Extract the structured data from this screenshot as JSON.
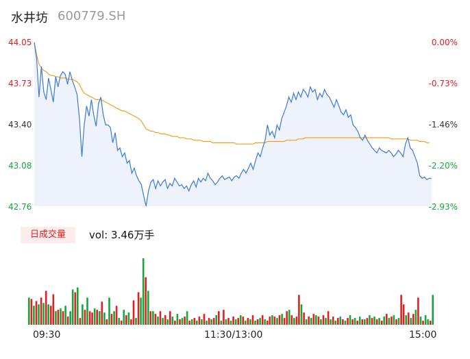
{
  "header": {
    "name": "水井坊",
    "code": "600779.SH"
  },
  "price_axis": [
    "44.05",
    "43.73",
    "43.40",
    "43.08",
    "42.76"
  ],
  "pct_axis": [
    "0.00%",
    "-0.73%",
    "-1.46%",
    "-2.20%",
    "-2.93%"
  ],
  "volume": {
    "badge": "日成交量",
    "label": "vol: 3.46万手"
  },
  "time_axis": [
    "09:30",
    "11:30/13:00",
    "15:00"
  ],
  "colors": {
    "price": "#3a78d8",
    "avg": "#f0a020",
    "up": "#e02020",
    "down": "#17a63a",
    "area": "#eef3fb"
  },
  "chart_data": {
    "type": "line",
    "ylim": [
      42.76,
      44.05
    ],
    "series": [
      {
        "values": [
          44.05,
          43.92,
          43.62,
          43.86,
          43.66,
          43.6,
          43.77,
          43.68,
          43.58,
          43.78,
          43.7,
          43.79,
          43.82,
          43.8,
          43.72,
          43.82,
          43.75,
          43.7,
          43.64,
          43.45,
          43.15,
          43.4,
          43.55,
          43.47,
          43.6,
          43.48,
          43.39,
          43.57,
          43.62,
          43.48,
          43.4,
          43.4,
          43.38,
          43.26,
          43.34,
          43.2,
          43.22,
          43.15,
          43.18,
          43.1,
          43.12,
          43.02,
          43.06,
          43.0,
          42.96,
          42.93,
          42.84,
          42.76,
          42.88,
          42.95,
          42.97,
          42.9,
          42.96,
          42.92,
          42.95,
          42.97,
          42.9,
          42.94,
          42.92,
          42.98,
          42.95,
          42.92,
          42.93,
          42.9,
          42.92,
          42.88,
          42.93,
          42.96,
          42.91,
          42.98,
          42.95,
          42.98,
          42.96,
          43.02,
          42.98,
          42.96,
          42.93,
          42.95,
          42.98,
          43.0,
          42.97,
          42.98,
          42.99,
          42.96,
          42.99,
          43.0,
          42.98,
          43.02,
          43.05,
          43.02,
          43.06,
          43.1,
          43.05,
          43.12,
          43.18,
          43.15,
          43.22,
          43.28,
          43.4,
          43.32,
          43.35,
          43.3,
          43.4,
          43.36,
          43.45,
          43.5,
          43.55,
          43.62,
          43.58,
          43.65,
          43.6,
          43.66,
          43.62,
          43.68,
          43.66,
          43.62,
          43.7,
          43.66,
          43.68,
          43.6,
          43.65,
          43.62,
          43.68,
          43.64,
          43.62,
          43.58,
          43.54,
          43.6,
          43.55,
          43.5,
          43.48,
          43.52,
          43.46,
          43.48,
          43.4,
          43.38,
          43.35,
          43.3,
          43.28,
          43.32,
          43.28,
          43.25,
          43.22,
          43.2,
          43.18,
          43.22,
          43.2,
          43.19,
          43.18,
          43.2,
          43.18,
          43.15,
          43.17,
          43.2,
          43.18,
          43.15,
          43.25,
          43.3,
          43.22,
          43.2,
          43.15,
          43.1,
          43.0,
          42.98,
          42.99,
          42.97,
          42.98,
          42.98
        ]
      },
      {
        "values": [
          44.05,
          43.95,
          43.88,
          43.85,
          43.83,
          43.82,
          43.8,
          43.79,
          43.79,
          43.78,
          43.78,
          43.77,
          43.77,
          43.77,
          43.76,
          43.76,
          43.76,
          43.75,
          43.74,
          43.72,
          43.68,
          43.65,
          43.64,
          43.63,
          43.62,
          43.61,
          43.6,
          43.6,
          43.6,
          43.59,
          43.58,
          43.57,
          43.56,
          43.55,
          43.54,
          43.53,
          43.52,
          43.51,
          43.51,
          43.5,
          43.49,
          43.48,
          43.47,
          43.46,
          43.45,
          43.43,
          43.4,
          43.37,
          43.36,
          43.35,
          43.35,
          43.34,
          43.34,
          43.33,
          43.33,
          43.33,
          43.32,
          43.32,
          43.31,
          43.31,
          43.31,
          43.3,
          43.3,
          43.3,
          43.29,
          43.29,
          43.29,
          43.28,
          43.28,
          43.28,
          43.28,
          43.27,
          43.27,
          43.27,
          43.27,
          43.26,
          43.26,
          43.26,
          43.26,
          43.26,
          43.26,
          43.26,
          43.26,
          43.26,
          43.26,
          43.25,
          43.25,
          43.25,
          43.25,
          43.25,
          43.25,
          43.25,
          43.25,
          43.26,
          43.26,
          43.26,
          43.26,
          43.26,
          43.27,
          43.27,
          43.27,
          43.27,
          43.27,
          43.27,
          43.27,
          43.27,
          43.28,
          43.28,
          43.28,
          43.28,
          43.28,
          43.29,
          43.29,
          43.29,
          43.3,
          43.3,
          43.3,
          43.3,
          43.3,
          43.3,
          43.3,
          43.3,
          43.3,
          43.3,
          43.3,
          43.3,
          43.3,
          43.3,
          43.3,
          43.3,
          43.3,
          43.3,
          43.3,
          43.3,
          43.3,
          43.3,
          43.3,
          43.3,
          43.3,
          43.3,
          43.3,
          43.3,
          43.3,
          43.3,
          43.3,
          43.3,
          43.3,
          43.3,
          43.3,
          43.3,
          43.29,
          43.29,
          43.29,
          43.29,
          43.29,
          43.29,
          43.29,
          43.29,
          43.28,
          43.28,
          43.28,
          43.28,
          43.27,
          43.27,
          43.27,
          43.26,
          43.26
        ]
      }
    ],
    "volume": {
      "values": [
        40,
        38,
        28,
        35,
        30,
        40,
        32,
        50,
        30,
        28,
        45,
        20,
        22,
        24,
        20,
        28,
        12,
        20,
        52,
        48,
        55,
        10,
        30,
        22,
        40,
        20,
        18,
        24,
        22,
        20,
        34,
        18,
        8,
        40,
        16,
        20,
        28,
        10,
        6,
        22,
        14,
        18,
        8,
        36,
        10,
        48,
        40,
        98,
        70,
        50,
        20,
        20,
        16,
        12,
        20,
        10,
        14,
        8,
        20,
        12,
        6,
        16,
        8,
        10,
        12,
        20,
        6,
        8,
        10,
        6,
        12,
        8,
        16,
        6,
        10,
        8,
        10,
        14,
        20,
        6,
        22,
        8,
        10,
        6,
        12,
        8,
        10,
        14,
        12,
        6,
        10,
        8,
        14,
        6,
        8,
        10,
        14,
        8,
        6,
        12,
        14,
        12,
        10,
        14,
        16,
        10,
        20,
        22,
        14,
        10,
        12,
        44,
        30,
        18,
        8,
        12,
        10,
        16,
        14,
        12,
        8,
        14,
        10,
        20,
        8,
        12,
        6,
        10,
        12,
        8,
        6,
        10,
        14,
        8,
        10,
        6,
        12,
        8,
        8,
        10,
        14,
        10,
        12,
        8,
        10,
        6,
        12,
        16,
        10,
        12,
        14,
        8,
        10,
        44,
        30,
        14,
        18,
        10,
        16,
        22,
        40,
        12,
        6,
        14,
        8,
        6,
        44
      ],
      "colors": [
        "d",
        "u",
        "d",
        "u",
        "d",
        "u",
        "d",
        "u",
        "d",
        "u",
        "u",
        "d",
        "u",
        "d",
        "u",
        "d",
        "u",
        "d",
        "d",
        "u",
        "d",
        "u",
        "d",
        "u",
        "d",
        "u",
        "u",
        "d",
        "u",
        "d",
        "u",
        "d",
        "u",
        "d",
        "u",
        "d",
        "u",
        "d",
        "u",
        "d",
        "u",
        "d",
        "u",
        "u",
        "d",
        "u",
        "d",
        "d",
        "u",
        "d",
        "u",
        "d",
        "u",
        "d",
        "u",
        "d",
        "u",
        "d",
        "u",
        "d",
        "u",
        "d",
        "u",
        "d",
        "u",
        "d",
        "u",
        "d",
        "u",
        "d",
        "u",
        "d",
        "u",
        "d",
        "u",
        "d",
        "u",
        "d",
        "u",
        "d",
        "u",
        "d",
        "u",
        "d",
        "u",
        "d",
        "u",
        "d",
        "u",
        "d",
        "u",
        "d",
        "u",
        "d",
        "u",
        "d",
        "u",
        "d",
        "u",
        "u",
        "d",
        "u",
        "d",
        "u",
        "d",
        "u",
        "u",
        "d",
        "u",
        "d",
        "u",
        "u",
        "d",
        "u",
        "d",
        "u",
        "d",
        "u",
        "d",
        "u",
        "d",
        "u",
        "d",
        "u",
        "d",
        "u",
        "d",
        "u",
        "d",
        "u",
        "d",
        "u",
        "d",
        "u",
        "d",
        "u",
        "d",
        "u",
        "d",
        "u",
        "d",
        "u",
        "d",
        "u",
        "d",
        "u",
        "d",
        "u",
        "d",
        "u",
        "d",
        "u",
        "d",
        "u",
        "u",
        "d",
        "u",
        "d",
        "u",
        "d",
        "u",
        "d",
        "u",
        "d",
        "d",
        "u",
        "d"
      ]
    }
  }
}
